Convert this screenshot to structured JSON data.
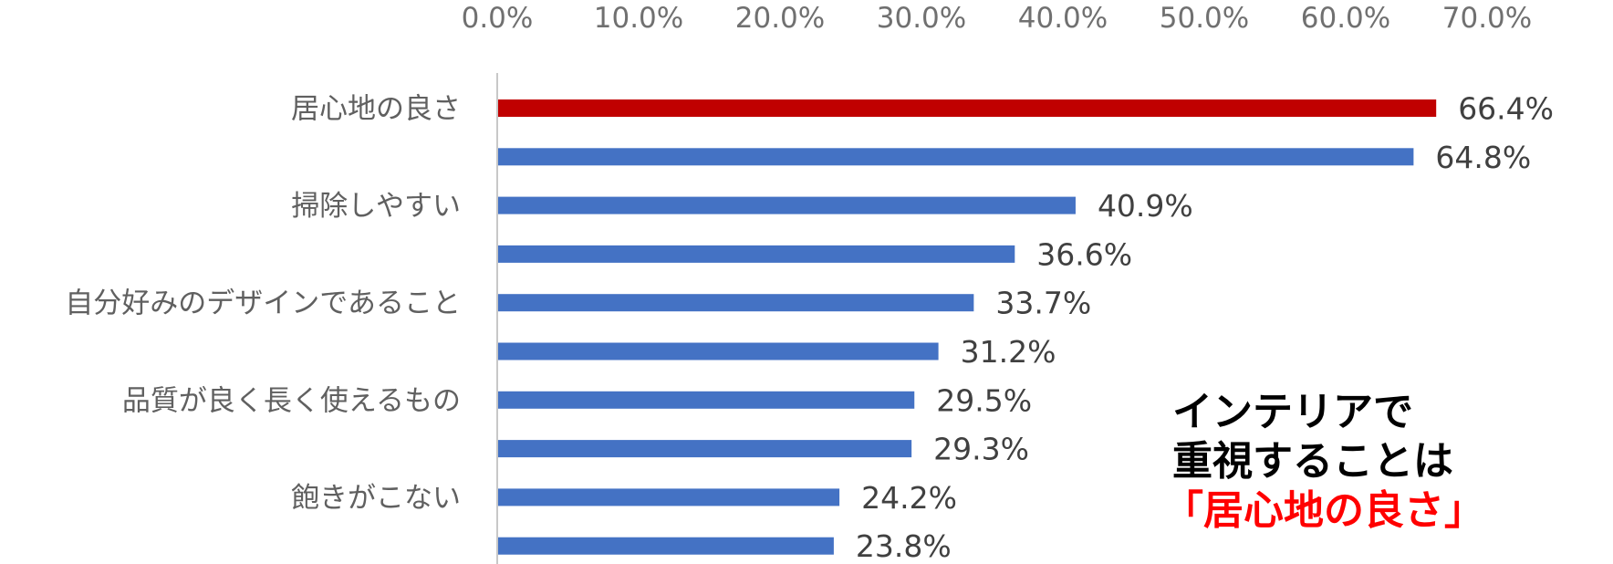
{
  "chart_data": {
    "type": "bar",
    "orientation": "horizontal",
    "x_ticks": [
      "0.0%",
      "10.0%",
      "20.0%",
      "30.0%",
      "40.0%",
      "50.0%",
      "60.0%",
      "70.0%"
    ],
    "xlim": [
      0,
      70
    ],
    "tick_position": "top",
    "grid": false,
    "categories": [
      "居心地の良さ",
      "",
      "掃除しやすい",
      "",
      "自分好みのデザインであること",
      "",
      "品質が良く長く使えるもの",
      "",
      "飽きがこない",
      ""
    ],
    "values": [
      66.4,
      64.8,
      40.9,
      36.6,
      33.7,
      31.2,
      29.5,
      29.3,
      24.2,
      23.8
    ],
    "value_labels": [
      "66.4%",
      "64.8%",
      "40.9%",
      "36.6%",
      "33.7%",
      "31.2%",
      "29.5%",
      "29.3%",
      "24.2%",
      "23.8%"
    ],
    "highlight_index": 0,
    "colors": {
      "bar": "#4472c4",
      "highlight_bar": "#c00000",
      "axis": "#c8c8c8"
    }
  },
  "callout": {
    "line1": "インテリアで",
    "line2": "重視することは",
    "line3": "「居心地の良さ」"
  }
}
